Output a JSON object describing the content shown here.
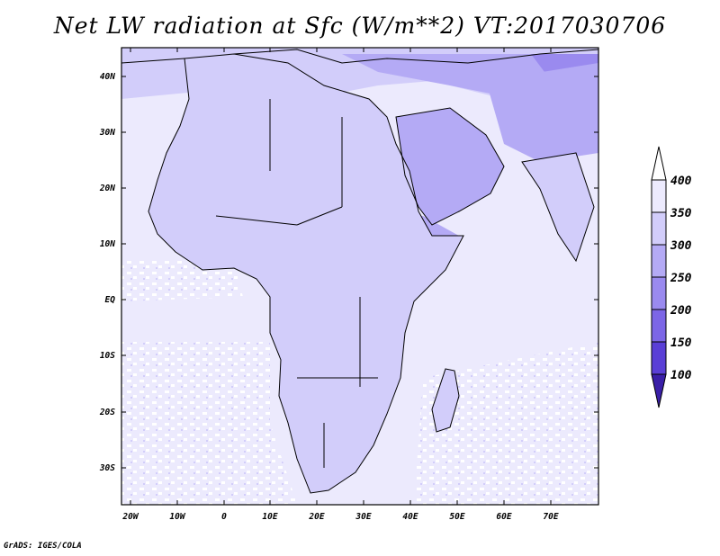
{
  "title": "Net LW radiation at Sfc (W/m**2) VT:2017030706",
  "credit": "GrADS: IGES/COLA",
  "colors": {
    "level_100": "#3a1fa8",
    "level_150": "#5a3fd6",
    "level_200": "#7c66e6",
    "level_250": "#9a8aef",
    "level_300": "#b4aaf5",
    "level_350": "#d2cdfa",
    "level_400": "#eceafd",
    "above": "#ffffff"
  },
  "map": {
    "lon_range": [
      -23,
      80
    ],
    "lat_range": [
      -37,
      45
    ],
    "lon_ticks": [
      "20W",
      "10W",
      "0",
      "10E",
      "20E",
      "30E",
      "40E",
      "50E",
      "60E",
      "70E"
    ],
    "lat_ticks": [
      "40N",
      "30N",
      "20N",
      "10N",
      "EQ",
      "10S",
      "20S",
      "30S"
    ]
  },
  "colorbar": {
    "labels": [
      "400",
      "350",
      "300",
      "250",
      "200",
      "150",
      "100"
    ]
  }
}
